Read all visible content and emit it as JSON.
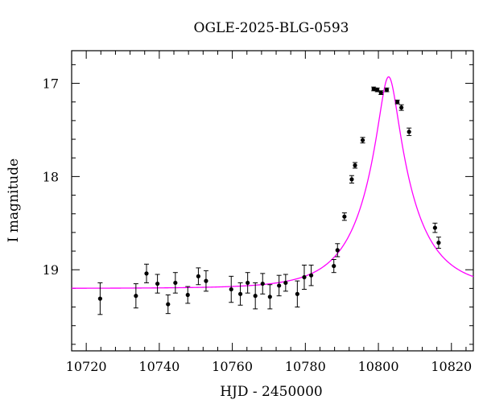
{
  "chart_data": {
    "type": "scatter",
    "title": "OGLE-2025-BLG-0593",
    "xlabel": "HJD - 2450000",
    "ylabel": "I magnitude",
    "xlim": [
      10716,
      10826
    ],
    "ylim": [
      19.87,
      16.65
    ],
    "y_inverted": true,
    "x_ticks": [
      10720,
      10740,
      10760,
      10780,
      10800,
      10820
    ],
    "y_ticks": [
      17,
      18,
      19
    ],
    "colors": {
      "data": "#000000",
      "model": "#ff00ff",
      "axes": "#000000"
    },
    "series": [
      {
        "kind": "points_with_errors",
        "x": [
          10723.8,
          10733.6,
          10736.5,
          10739.5,
          10742.4,
          10744.4,
          10747.8,
          10750.7,
          10752.8,
          10759.7,
          10762.2,
          10764.2,
          10766.3,
          10768.3,
          10770.3,
          10772.8,
          10774.6,
          10777.8,
          10779.7,
          10781.6,
          10787.8,
          10788.8,
          10790.7,
          10792.7,
          10793.6,
          10795.7,
          10798.7,
          10799.7,
          10800.7,
          10802.3,
          10805.2,
          10806.3,
          10808.4,
          10815.5,
          10816.5
        ],
        "y": [
          19.31,
          19.28,
          19.04,
          19.15,
          19.37,
          19.14,
          19.27,
          19.07,
          19.12,
          19.21,
          19.26,
          19.14,
          19.28,
          19.15,
          19.29,
          19.17,
          19.14,
          19.26,
          19.08,
          19.06,
          18.96,
          18.79,
          18.43,
          18.03,
          17.88,
          17.61,
          17.06,
          17.07,
          17.1,
          17.07,
          17.2,
          17.26,
          17.52,
          18.55,
          18.71
        ],
        "err": [
          0.17,
          0.13,
          0.1,
          0.1,
          0.1,
          0.11,
          0.09,
          0.09,
          0.11,
          0.14,
          0.12,
          0.11,
          0.14,
          0.11,
          0.13,
          0.11,
          0.09,
          0.14,
          0.13,
          0.11,
          0.07,
          0.07,
          0.04,
          0.04,
          0.03,
          0.03,
          0.02,
          0.02,
          0.02,
          0.02,
          0.02,
          0.03,
          0.04,
          0.05,
          0.06
        ]
      },
      {
        "kind": "model_curve",
        "baseline": 19.2,
        "peak": 16.93,
        "t0": 10802.8,
        "u0": 0.18,
        "tE": 14
      }
    ]
  }
}
